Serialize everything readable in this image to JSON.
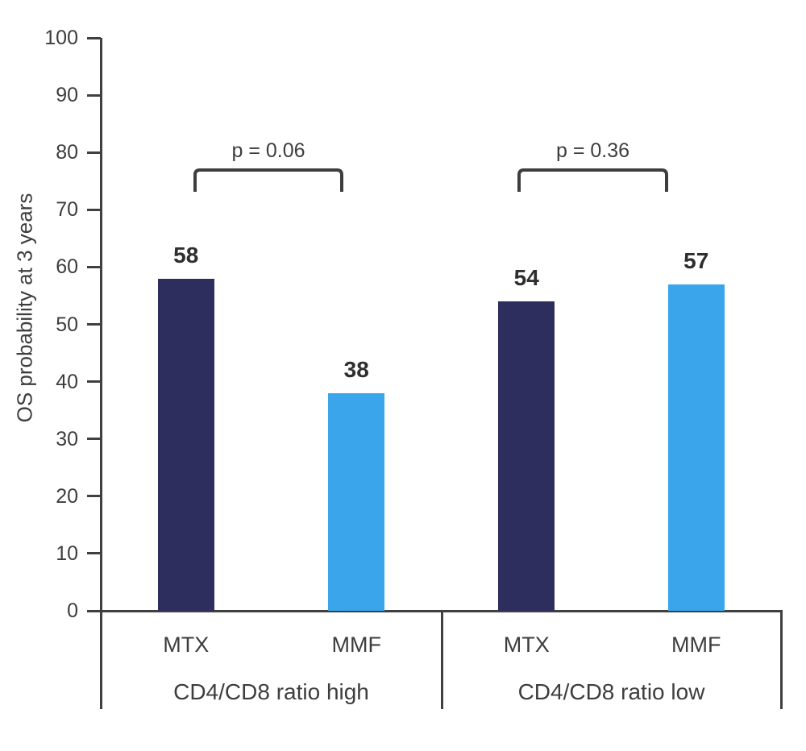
{
  "colors": {
    "axis": "#404040",
    "text": "#3d3d3d",
    "value_label": "#2e2e2e",
    "background": "#ffffff"
  },
  "chart_data": {
    "type": "bar",
    "title": "",
    "xlabel": "",
    "ylabel": "OS probability at 3 years",
    "ylim": [
      0,
      100
    ],
    "ytick_step": 10,
    "ytick_labels": [
      "0",
      "10",
      "20",
      "30",
      "40",
      "50",
      "60",
      "70",
      "80",
      "90",
      "100"
    ],
    "grid": false,
    "legend_position": "none",
    "series_names": [
      "MTX",
      "MMF"
    ],
    "series_colors": {
      "MTX": "#2d2e5e",
      "MMF": "#3aa5ea"
    },
    "groups": [
      {
        "label": "CD4/CD8 ratio high",
        "p_label": "p = 0.06",
        "bars": [
          {
            "series": "MTX",
            "value": 58,
            "value_label": "58"
          },
          {
            "series": "MMF",
            "value": 38,
            "value_label": "38"
          }
        ]
      },
      {
        "label": "CD4/CD8 ratio low",
        "p_label": "p = 0.36",
        "bars": [
          {
            "series": "MTX",
            "value": 54,
            "value_label": "54"
          },
          {
            "series": "MMF",
            "value": 57,
            "value_label": "57"
          }
        ]
      }
    ]
  }
}
